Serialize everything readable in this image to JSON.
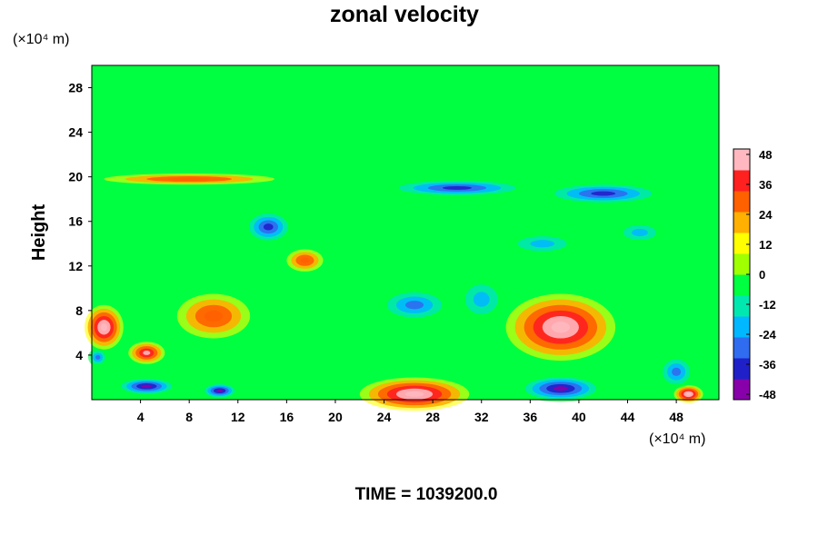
{
  "chart_data": {
    "type": "heatmap",
    "title": "zonal velocity",
    "ylabel": "Height",
    "xunit": "(×10⁴ m)",
    "yunit": "(×10⁴ m)",
    "annotation": "TIME = 1039200.0",
    "xlim": [
      0,
      51.5
    ],
    "ylim": [
      0,
      30
    ],
    "xticks": [
      4,
      8,
      12,
      16,
      20,
      24,
      28,
      32,
      36,
      40,
      44,
      48
    ],
    "yticks": [
      4,
      8,
      12,
      16,
      20,
      24,
      28
    ],
    "colorbar": {
      "min": -48,
      "max": 48,
      "ticks": [
        48,
        36,
        24,
        12,
        0,
        -12,
        -24,
        -36,
        -48
      ],
      "colors": [
        "#8800aa",
        "#2020c8",
        "#2f6cf0",
        "#00b8ff",
        "#00e8b0",
        "#00ff40",
        "#a0ff00",
        "#ffff00",
        "#ffb000",
        "#ff6000",
        "#ff2020",
        "#ffb8c0"
      ]
    },
    "features": [
      {
        "x": 38.5,
        "y": 6.5,
        "rx": 4.5,
        "ry": 3.0,
        "value": 48
      },
      {
        "x": 26.5,
        "y": 0.5,
        "rx": 4.5,
        "ry": 1.5,
        "value": 48
      },
      {
        "x": 1.0,
        "y": 6.5,
        "rx": 1.6,
        "ry": 2.0,
        "value": 44
      },
      {
        "x": 4.5,
        "y": 4.2,
        "rx": 1.5,
        "ry": 1.0,
        "value": 40
      },
      {
        "x": 10.0,
        "y": 7.5,
        "rx": 3.0,
        "ry": 2.0,
        "value": 28
      },
      {
        "x": 49.0,
        "y": 0.5,
        "rx": 1.2,
        "ry": 0.8,
        "value": 45
      },
      {
        "x": 17.5,
        "y": 12.5,
        "rx": 1.5,
        "ry": 1.0,
        "value": 28
      },
      {
        "x": 8.0,
        "y": 19.8,
        "rx": 7.0,
        "ry": 0.5,
        "value": 28
      },
      {
        "x": 38.5,
        "y": 1.0,
        "rx": 3.5,
        "ry": 1.2,
        "value": -48
      },
      {
        "x": 4.5,
        "y": 1.2,
        "rx": 2.5,
        "ry": 0.8,
        "value": -44
      },
      {
        "x": 10.5,
        "y": 0.8,
        "rx": 1.5,
        "ry": 0.7,
        "value": -44
      },
      {
        "x": 30.0,
        "y": 19.0,
        "rx": 6.0,
        "ry": 0.8,
        "value": -40
      },
      {
        "x": 42.0,
        "y": 18.5,
        "rx": 5.0,
        "ry": 1.0,
        "value": -38
      },
      {
        "x": 14.5,
        "y": 15.5,
        "rx": 2.0,
        "ry": 1.5,
        "value": -40
      },
      {
        "x": 26.5,
        "y": 8.5,
        "rx": 3.0,
        "ry": 1.5,
        "value": -34
      },
      {
        "x": 48.0,
        "y": 2.5,
        "rx": 1.5,
        "ry": 1.5,
        "value": -34
      },
      {
        "x": 37.0,
        "y": 14.0,
        "rx": 3.0,
        "ry": 1.0,
        "value": -26
      },
      {
        "x": 45.0,
        "y": 15.0,
        "rx": 2.0,
        "ry": 1.0,
        "value": -26
      },
      {
        "x": 32.0,
        "y": 9.0,
        "rx": 2.0,
        "ry": 2.0,
        "value": -20
      },
      {
        "x": 0.5,
        "y": 3.8,
        "rx": 0.8,
        "ry": 0.8,
        "value": -30
      }
    ]
  }
}
